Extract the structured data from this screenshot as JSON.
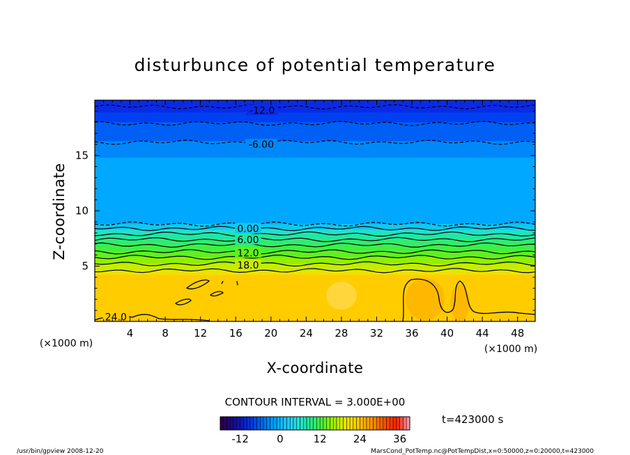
{
  "chart_data": {
    "type": "heatmap",
    "title": "disturbunce of potential temperature",
    "xlabel": "X-coordinate",
    "ylabel": "Z-coordinate",
    "x_unit": "(×1000 m)",
    "y_unit": "(×1000 m)",
    "xlim": [
      0,
      50
    ],
    "ylim": [
      0,
      20
    ],
    "xticks": [
      4,
      8,
      12,
      16,
      20,
      24,
      28,
      32,
      36,
      40,
      44,
      48
    ],
    "yticks": [
      5,
      10,
      15
    ],
    "contour_interval_label": "CONTOUR INTERVAL = 3.000E+00",
    "time_label": "t=423000 s",
    "colorbar": {
      "min": -18,
      "max": 39,
      "ticks": [
        -12,
        0,
        12,
        24,
        36
      ],
      "colors": [
        "#2a004a",
        "#1a0a8a",
        "#0a1ec8",
        "#0046e6",
        "#0078f0",
        "#00a8ff",
        "#20c8ff",
        "#20e0d8",
        "#20e890",
        "#40f040",
        "#90f000",
        "#d8e800",
        "#ffd800",
        "#ffb000",
        "#ff8000",
        "#ff4800",
        "#ff2000",
        "#ff90a0"
      ]
    },
    "contour_labels": [
      {
        "text": "-12.0",
        "x": 19.0,
        "z": 19.1
      },
      {
        "text": "-6.00",
        "x": 18.9,
        "z": 16.0
      },
      {
        "text": "0.00",
        "x": 17.4,
        "z": 8.4
      },
      {
        "text": "6.00",
        "x": 17.4,
        "z": 7.4
      },
      {
        "text": "12.0",
        "x": 17.4,
        "z": 6.2
      },
      {
        "text": "18.0",
        "x": 17.4,
        "z": 5.1
      },
      {
        "text": "24.0",
        "x": 2.4,
        "z": 0.4
      }
    ],
    "field_bands": [
      {
        "z0": 18.9,
        "z1": 20.0,
        "color": "#0a2ae8"
      },
      {
        "z0": 18.0,
        "z1": 18.9,
        "color": "#0040f0"
      },
      {
        "z0": 16.3,
        "z1": 18.0,
        "color": "#0060f5"
      },
      {
        "z0": 14.8,
        "z1": 16.3,
        "color": "#0088fa"
      },
      {
        "z0": 8.8,
        "z1": 14.8,
        "color": "#00a8ff"
      },
      {
        "z0": 8.3,
        "z1": 8.8,
        "color": "#10c8f0"
      },
      {
        "z0": 7.9,
        "z1": 8.3,
        "color": "#20e0d0"
      },
      {
        "z0": 7.4,
        "z1": 7.9,
        "color": "#20e8a0"
      },
      {
        "z0": 6.9,
        "z1": 7.4,
        "color": "#30ec70"
      },
      {
        "z0": 6.3,
        "z1": 6.9,
        "color": "#40f040"
      },
      {
        "z0": 5.8,
        "z1": 6.3,
        "color": "#60f020"
      },
      {
        "z0": 5.2,
        "z1": 5.8,
        "color": "#90f000"
      },
      {
        "z0": 4.6,
        "z1": 5.2,
        "color": "#c8ec00"
      },
      {
        "z0": 4.2,
        "z1": 4.6,
        "color": "#f0e000"
      },
      {
        "z0": 0.0,
        "z1": 4.2,
        "color": "#ffcc00"
      }
    ],
    "contour_lines": [
      {
        "z": 19.4,
        "dashed": true
      },
      {
        "z": 17.9,
        "dashed": true
      },
      {
        "z": 16.2,
        "dashed": true
      },
      {
        "z": 8.8,
        "dashed": true
      },
      {
        "z": 8.4,
        "dashed": false
      },
      {
        "z": 7.9,
        "dashed": false
      },
      {
        "z": 7.4,
        "dashed": false
      },
      {
        "z": 6.9,
        "dashed": false
      },
      {
        "z": 6.3,
        "dashed": false
      },
      {
        "z": 5.8,
        "dashed": false
      },
      {
        "z": 5.2,
        "dashed": false
      },
      {
        "z": 4.6,
        "dashed": false
      }
    ]
  },
  "footer": {
    "left": "/usr/bin/gpview   2008-12-20",
    "right": "MarsCond_PotTemp.nc@PotTempDist,x=0:50000,z=0:20000,t=423000"
  }
}
